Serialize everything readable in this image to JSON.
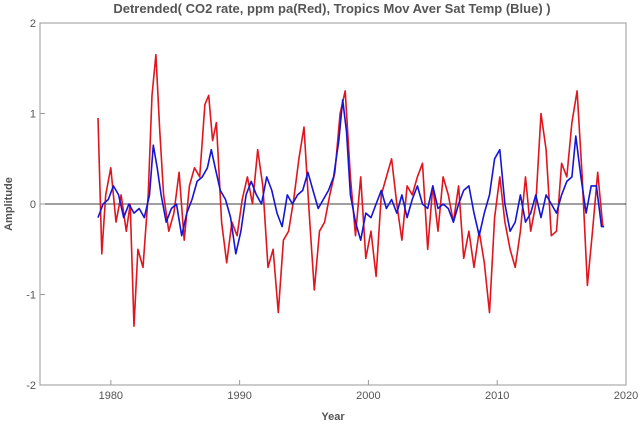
{
  "chart_data": {
    "type": "line",
    "title": "Detrended( CO2 rate, ppm pa(Red), Tropics Mov Aver Sat Temp (Blue) )",
    "xlabel": "Year",
    "ylabel": "Amplitude",
    "xlim": [
      1974.5,
      2020
    ],
    "ylim": [
      -2,
      2
    ],
    "xticks": [
      1980,
      1990,
      2000,
      2010,
      2020
    ],
    "yticks": [
      -2,
      -1,
      0,
      1,
      2
    ],
    "zero_line": true,
    "grid": false,
    "series": [
      {
        "color": "#e0151d",
        "x": [
          1979.0,
          1979.3,
          1979.6,
          1980.0,
          1980.4,
          1980.8,
          1981.2,
          1981.5,
          1981.8,
          1982.1,
          1982.5,
          1982.9,
          1983.2,
          1983.5,
          1983.8,
          1984.1,
          1984.5,
          1984.9,
          1985.3,
          1985.7,
          1986.1,
          1986.5,
          1986.9,
          1987.3,
          1987.6,
          1987.9,
          1988.2,
          1988.6,
          1989.0,
          1989.4,
          1989.8,
          1990.2,
          1990.6,
          1991.0,
          1991.4,
          1991.8,
          1992.2,
          1992.6,
          1993.0,
          1993.4,
          1993.8,
          1994.2,
          1994.6,
          1995.0,
          1995.4,
          1995.8,
          1996.2,
          1996.6,
          1997.0,
          1997.4,
          1997.8,
          1998.2,
          1998.6,
          1999.0,
          1999.4,
          1999.8,
          2000.2,
          2000.6,
          2001.0,
          2001.4,
          2001.8,
          2002.2,
          2002.6,
          2003.0,
          2003.4,
          2003.8,
          2004.2,
          2004.6,
          2005.0,
          2005.4,
          2005.8,
          2006.2,
          2006.6,
          2007.0,
          2007.4,
          2007.8,
          2008.2,
          2008.6,
          2009.0,
          2009.4,
          2009.8,
          2010.2,
          2010.6,
          2011.0,
          2011.4,
          2011.8,
          2012.2,
          2012.6,
          2013.0,
          2013.4,
          2013.8,
          2014.2,
          2014.6,
          2015.0,
          2015.4,
          2015.8,
          2016.2,
          2016.6,
          2017.0,
          2017.4,
          2017.8,
          2018.2
        ],
        "values": [
          0.95,
          -0.55,
          0.1,
          0.4,
          -0.2,
          0.1,
          -0.3,
          0.0,
          -1.35,
          -0.5,
          -0.7,
          0.1,
          1.2,
          1.65,
          0.8,
          0.1,
          -0.3,
          -0.1,
          0.35,
          -0.4,
          0.2,
          0.4,
          0.3,
          1.1,
          1.2,
          0.7,
          0.9,
          -0.2,
          -0.65,
          -0.2,
          -0.35,
          0.05,
          0.3,
          0.0,
          0.6,
          0.2,
          -0.7,
          -0.5,
          -1.2,
          -0.4,
          -0.3,
          0.05,
          0.5,
          0.85,
          -0.1,
          -0.95,
          -0.3,
          -0.2,
          0.1,
          0.35,
          1.0,
          1.25,
          0.3,
          -0.35,
          0.3,
          -0.6,
          -0.3,
          -0.8,
          0.1,
          0.3,
          0.5,
          0.0,
          -0.4,
          0.2,
          0.1,
          0.3,
          0.45,
          -0.5,
          0.2,
          -0.3,
          0.3,
          0.1,
          -0.2,
          0.2,
          -0.6,
          -0.3,
          -0.7,
          -0.3,
          -0.65,
          -1.2,
          -0.15,
          0.3,
          -0.2,
          -0.5,
          -0.7,
          -0.3,
          0.3,
          -0.3,
          0.0,
          1.0,
          0.6,
          -0.35,
          -0.3,
          0.45,
          0.3,
          0.9,
          1.25,
          0.3,
          -0.9,
          -0.3,
          0.35,
          -0.25
        ]
      },
      {
        "color": "#1515d6",
        "x": [
          1979.0,
          1979.4,
          1979.8,
          1980.2,
          1980.6,
          1981.0,
          1981.4,
          1981.8,
          1982.2,
          1982.6,
          1983.0,
          1983.3,
          1983.6,
          1983.9,
          1984.3,
          1984.7,
          1985.1,
          1985.5,
          1985.9,
          1986.3,
          1986.7,
          1987.1,
          1987.5,
          1987.8,
          1988.1,
          1988.5,
          1988.9,
          1989.3,
          1989.7,
          1990.1,
          1990.5,
          1990.9,
          1991.3,
          1991.7,
          1992.1,
          1992.5,
          1992.9,
          1993.3,
          1993.7,
          1994.1,
          1994.5,
          1994.9,
          1995.3,
          1995.7,
          1996.1,
          1996.5,
          1996.9,
          1997.3,
          1997.7,
          1998.0,
          1998.3,
          1998.6,
          1999.0,
          1999.4,
          1999.8,
          2000.2,
          2000.6,
          2001.0,
          2001.4,
          2001.8,
          2002.2,
          2002.6,
          2003.0,
          2003.4,
          2003.8,
          2004.2,
          2004.6,
          2005.0,
          2005.4,
          2005.8,
          2006.2,
          2006.6,
          2007.0,
          2007.4,
          2007.8,
          2008.2,
          2008.6,
          2009.0,
          2009.4,
          2009.8,
          2010.2,
          2010.6,
          2011.0,
          2011.4,
          2011.8,
          2012.2,
          2012.6,
          2013.0,
          2013.4,
          2013.8,
          2014.2,
          2014.6,
          2015.0,
          2015.4,
          2015.8,
          2016.1,
          2016.5,
          2016.9,
          2017.3,
          2017.7,
          2018.1,
          2018.3
        ],
        "values": [
          -0.15,
          0.0,
          0.05,
          0.2,
          0.1,
          -0.15,
          0.0,
          -0.1,
          -0.05,
          -0.15,
          0.1,
          0.65,
          0.4,
          0.1,
          -0.2,
          -0.05,
          0.0,
          -0.35,
          -0.1,
          0.05,
          0.25,
          0.3,
          0.4,
          0.6,
          0.4,
          0.15,
          0.05,
          -0.15,
          -0.55,
          -0.3,
          0.1,
          0.25,
          0.1,
          0.0,
          0.3,
          0.15,
          -0.1,
          -0.25,
          0.1,
          0.0,
          0.1,
          0.15,
          0.35,
          0.15,
          -0.05,
          0.05,
          0.15,
          0.3,
          0.7,
          1.15,
          0.8,
          0.1,
          -0.2,
          -0.4,
          -0.1,
          -0.15,
          0.0,
          0.15,
          -0.05,
          0.05,
          -0.1,
          0.1,
          -0.15,
          0.05,
          0.2,
          0.0,
          -0.05,
          0.2,
          -0.05,
          0.0,
          -0.05,
          -0.2,
          0.0,
          0.15,
          0.2,
          -0.1,
          -0.35,
          -0.1,
          0.1,
          0.5,
          0.6,
          0.0,
          -0.3,
          -0.2,
          0.1,
          -0.2,
          -0.1,
          0.1,
          -0.15,
          0.1,
          0.0,
          -0.1,
          0.1,
          0.25,
          0.3,
          0.75,
          0.3,
          -0.1,
          0.2,
          0.2,
          -0.25,
          -0.25
        ]
      }
    ]
  }
}
